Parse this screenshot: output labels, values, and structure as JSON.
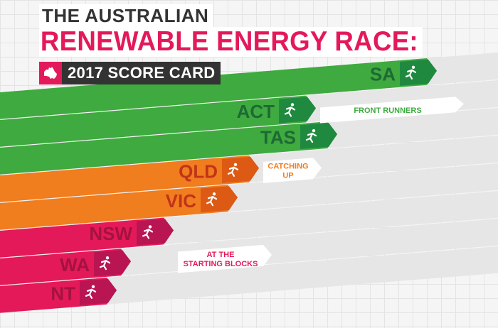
{
  "header": {
    "title_line1": "THE AUSTRALIAN",
    "title_line2": "RENEWABLE ENERGY RACE:",
    "subtitle": "2017 SCORE CARD"
  },
  "colors": {
    "green": "#3faa3f",
    "green_dark": "#1f8a3f",
    "orange": "#f07d1e",
    "orange_dark": "#dc5a14",
    "pink": "#e4195a",
    "pink_dark": "#b81552",
    "front_text": "#3faa3f",
    "catching_text": "#f07d1e",
    "starting_text": "#e4195a",
    "label_green": "#1d6a34",
    "label_orange": "#c2331a",
    "label_pink": "#a3133f"
  },
  "chart_data": {
    "type": "bar",
    "orientation": "horizontal",
    "categories": [
      "SA",
      "ACT",
      "TAS",
      "QLD",
      "VIC",
      "NSW",
      "WA",
      "NT"
    ],
    "values": [
      6.0,
      4.3,
      4.6,
      3.5,
      3.2,
      2.3,
      1.7,
      1.5
    ],
    "groups": [
      "FRONT RUNNERS",
      "FRONT RUNNERS",
      "FRONT RUNNERS",
      "CATCHING UP",
      "CATCHING UP",
      "AT THE STARTING BLOCKS",
      "AT THE STARTING BLOCKS",
      "AT THE STARTING BLOCKS"
    ],
    "group_labels": [
      {
        "name": "FRONT RUNNERS",
        "lines": [
          "FRONT RUNNERS"
        ]
      },
      {
        "name": "CATCHING UP",
        "lines": [
          "CATCHING",
          "UP"
        ]
      },
      {
        "name": "AT THE STARTING BLOCKS",
        "lines": [
          "AT THE",
          "STARTING BLOCKS"
        ]
      }
    ],
    "xlim": [
      0,
      7
    ],
    "grid": true
  }
}
